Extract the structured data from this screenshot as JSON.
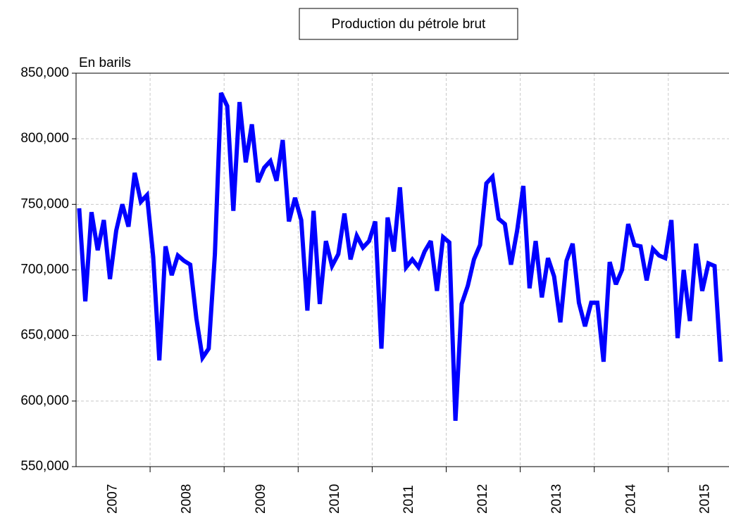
{
  "chart_data": {
    "type": "line",
    "title": "Production du pétrole brut",
    "y_label": "En barils",
    "x": [
      2007.042,
      2007.125,
      2007.208,
      2007.292,
      2007.375,
      2007.458,
      2007.542,
      2007.625,
      2007.708,
      2007.792,
      2007.875,
      2007.958,
      2008.042,
      2008.125,
      2008.208,
      2008.292,
      2008.375,
      2008.458,
      2008.542,
      2008.625,
      2008.708,
      2008.792,
      2008.875,
      2008.958,
      2009.042,
      2009.125,
      2009.208,
      2009.292,
      2009.375,
      2009.458,
      2009.542,
      2009.625,
      2009.708,
      2009.792,
      2009.875,
      2009.958,
      2010.042,
      2010.125,
      2010.208,
      2010.292,
      2010.375,
      2010.458,
      2010.542,
      2010.625,
      2010.708,
      2010.792,
      2010.875,
      2010.958,
      2011.042,
      2011.125,
      2011.208,
      2011.292,
      2011.375,
      2011.458,
      2011.542,
      2011.625,
      2011.708,
      2011.792,
      2011.875,
      2011.958,
      2012.042,
      2012.125,
      2012.208,
      2012.292,
      2012.375,
      2012.458,
      2012.542,
      2012.625,
      2012.708,
      2012.792,
      2012.875,
      2012.958,
      2013.042,
      2013.125,
      2013.208,
      2013.292,
      2013.375,
      2013.458,
      2013.542,
      2013.625,
      2013.708,
      2013.792,
      2013.875,
      2013.958,
      2014.042,
      2014.125,
      2014.208,
      2014.292,
      2014.375,
      2014.458,
      2014.542,
      2014.625,
      2014.708,
      2014.792,
      2014.875,
      2014.958,
      2015.042,
      2015.125,
      2015.208,
      2015.292,
      2015.375,
      2015.458,
      2015.542,
      2015.625,
      2015.708
    ],
    "series": [
      {
        "color": "#0000ff",
        "values": [
          747000,
          676000,
          744000,
          715000,
          738000,
          693000,
          730000,
          750000,
          733000,
          774000,
          752000,
          757000,
          710000,
          631000,
          718000,
          696000,
          711000,
          707000,
          704000,
          663000,
          633000,
          640000,
          712000,
          835000,
          825000,
          745000,
          828000,
          782000,
          811000,
          767000,
          778000,
          783000,
          768000,
          799000,
          737000,
          755000,
          738000,
          669000,
          745000,
          674000,
          722000,
          703000,
          712000,
          743000,
          708000,
          726000,
          717000,
          722000,
          737000,
          640000,
          740000,
          714000,
          763000,
          702000,
          708000,
          702000,
          714000,
          722000,
          684000,
          725000,
          721000,
          585000,
          674000,
          688000,
          708000,
          719000,
          766000,
          771000,
          739000,
          735000,
          704000,
          730000,
          764000,
          686000,
          722000,
          679000,
          709000,
          695000,
          660000,
          707000,
          720000,
          675000,
          657000,
          675000,
          675000,
          630000,
          706000,
          689000,
          700000,
          735000,
          719000,
          718000,
          692000,
          716000,
          711000,
          709000,
          738000,
          648000,
          700000,
          661000,
          720000,
          684000,
          705000,
          703000,
          630000
        ]
      }
    ],
    "xlim": [
      2007,
      2015.82
    ],
    "xticks": [
      {
        "value": 2007.5,
        "label": "2007"
      },
      {
        "value": 2008.5,
        "label": "2008"
      },
      {
        "value": 2009.5,
        "label": "2009"
      },
      {
        "value": 2010.5,
        "label": "2010"
      },
      {
        "value": 2011.5,
        "label": "2011"
      },
      {
        "value": 2012.5,
        "label": "2012"
      },
      {
        "value": 2013.5,
        "label": "2013"
      },
      {
        "value": 2014.5,
        "label": "2014"
      },
      {
        "value": 2015.5,
        "label": "2015"
      }
    ],
    "xgrid": [
      2008,
      2009,
      2010,
      2011,
      2012,
      2013,
      2014,
      2015
    ],
    "ylim": [
      550000,
      850000
    ],
    "yticks": [
      {
        "value": 550000,
        "label": "550,000"
      },
      {
        "value": 600000,
        "label": "600,000"
      },
      {
        "value": 650000,
        "label": "650,000"
      },
      {
        "value": 700000,
        "label": "700,000"
      },
      {
        "value": 750000,
        "label": "750,000"
      },
      {
        "value": 800000,
        "label": "800,000"
      },
      {
        "value": 850000,
        "label": "850,000"
      }
    ],
    "grid": true
  }
}
